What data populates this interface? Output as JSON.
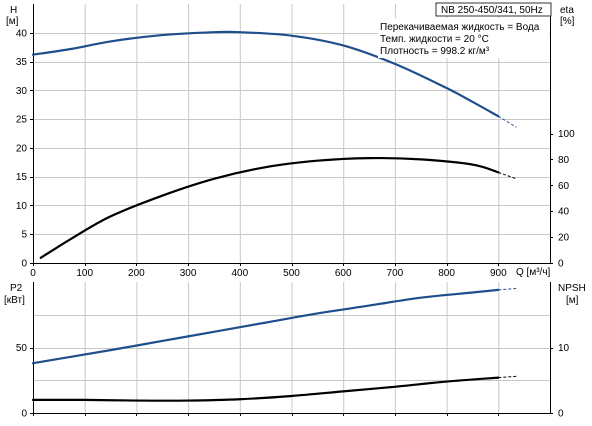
{
  "chart_data": [
    {
      "type": "line",
      "panel": "H-Q / eta-Q",
      "title": "NB 250-450/341, 50Hz",
      "info_lines": [
        "Перекачиваемая жидкость = Вода",
        "Темп. жидкости = 20 °C",
        "Плотность = 998.2 кг/м³"
      ],
      "xlabel": "Q [м³/ч]",
      "x_ticks": [
        0,
        100,
        200,
        300,
        400,
        500,
        600,
        700,
        800,
        900
      ],
      "xlim": [
        0,
        1000
      ],
      "y_left_label": [
        "H",
        "[м]"
      ],
      "y_left_ticks": [
        0,
        5,
        10,
        15,
        20,
        25,
        30,
        35,
        40
      ],
      "ylim_left": [
        0,
        45
      ],
      "y_right_label": [
        "eta",
        "[%]"
      ],
      "y_right_ticks": [
        0,
        20,
        40,
        60,
        80,
        100
      ],
      "ylim_right": [
        0,
        200
      ],
      "grid": true,
      "series": [
        {
          "name": "H",
          "axis": "left",
          "color": "#1f4e8c",
          "x": [
            0,
            75,
            150,
            250,
            350,
            400,
            500,
            600,
            700,
            800,
            850,
            900
          ],
          "y": [
            36.2,
            37.2,
            38.5,
            39.6,
            40.1,
            40.1,
            39.5,
            37.8,
            34.6,
            30.4,
            28.0,
            25.5
          ],
          "extension_x": [
            900,
            935
          ],
          "extension_y": [
            25.5,
            23.6
          ]
        },
        {
          "name": "eta",
          "axis": "right",
          "color": "#000000",
          "x": [
            15,
            75,
            150,
            250,
            350,
            450,
            550,
            650,
            750,
            850,
            900
          ],
          "y": [
            4,
            19,
            36,
            52,
            65,
            74,
            79,
            81,
            80,
            76,
            70
          ],
          "extension_x": [
            900,
            935
          ],
          "extension_y": [
            70,
            65
          ]
        }
      ]
    },
    {
      "type": "line",
      "panel": "P2-Q / NPSH-Q",
      "xlim": [
        0,
        1000
      ],
      "x_ticks": [
        0,
        100,
        200,
        300,
        400,
        500,
        600,
        700,
        800,
        900
      ],
      "y_left_label": [
        "P2",
        "[кВт]"
      ],
      "y_left_ticks": [
        0,
        50
      ],
      "ylim_left": [
        0,
        100
      ],
      "y_right_label": [
        "NPSH",
        "[м]"
      ],
      "y_right_ticks": [
        0,
        10
      ],
      "ylim_right": [
        0,
        20
      ],
      "grid": true,
      "series": [
        {
          "name": "P2",
          "axis": "left",
          "color": "#1f4e8c",
          "x": [
            0,
            75,
            150,
            250,
            350,
            450,
            550,
            650,
            750,
            850,
            900
          ],
          "y": [
            38,
            43,
            48,
            55,
            62,
            69,
            76,
            82,
            88,
            92,
            94
          ],
          "extension_x": [
            900,
            935
          ],
          "extension_y": [
            94,
            95
          ]
        },
        {
          "name": "NPSH",
          "axis": "right",
          "color": "#000000",
          "x": [
            0,
            100,
            200,
            300,
            400,
            500,
            600,
            700,
            800,
            900
          ],
          "y": [
            2.0,
            2.0,
            1.9,
            1.9,
            2.1,
            2.6,
            3.3,
            4.0,
            4.8,
            5.4
          ],
          "extension_x": [
            900,
            935
          ],
          "extension_y": [
            5.4,
            5.6
          ]
        }
      ]
    }
  ]
}
